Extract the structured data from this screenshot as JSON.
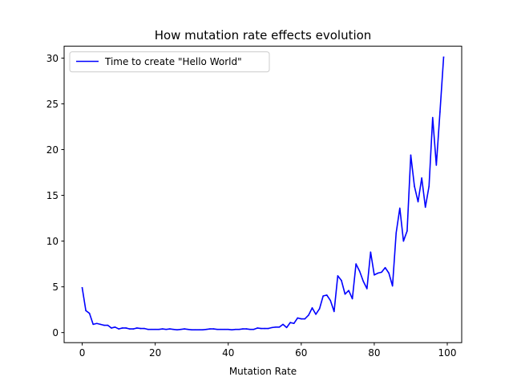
{
  "chart_data": {
    "type": "line",
    "title": "How mutation rate effects evolution",
    "xlabel": "Mutation Rate",
    "ylabel": "",
    "xlim": [
      -4.95,
      103.95
    ],
    "ylim": [
      -1.1,
      31.3
    ],
    "xticks": [
      0,
      20,
      40,
      60,
      80,
      100
    ],
    "yticks": [
      0,
      5,
      10,
      15,
      20,
      25,
      30
    ],
    "grid": false,
    "legend_position": "top-left",
    "series": [
      {
        "name": "Time to create \"Hello World\"",
        "color": "#0000ff",
        "x": [
          0,
          1,
          2,
          3,
          4,
          5,
          6,
          7,
          8,
          9,
          10,
          11,
          12,
          13,
          14,
          15,
          16,
          17,
          18,
          19,
          20,
          21,
          22,
          23,
          24,
          25,
          26,
          27,
          28,
          29,
          30,
          31,
          32,
          33,
          34,
          35,
          36,
          37,
          38,
          39,
          40,
          41,
          42,
          43,
          44,
          45,
          46,
          47,
          48,
          49,
          50,
          51,
          52,
          53,
          54,
          55,
          56,
          57,
          58,
          59,
          60,
          61,
          62,
          63,
          64,
          65,
          66,
          67,
          68,
          69,
          70,
          71,
          72,
          73,
          74,
          75,
          76,
          77,
          78,
          79,
          80,
          81,
          82,
          83,
          84,
          85,
          86,
          87,
          88,
          89,
          90,
          91,
          92,
          93,
          94,
          95,
          96,
          97,
          98,
          99
        ],
        "y": [
          4.9,
          2.4,
          2.1,
          0.9,
          1.0,
          0.9,
          0.8,
          0.8,
          0.5,
          0.6,
          0.4,
          0.5,
          0.5,
          0.4,
          0.4,
          0.5,
          0.45,
          0.45,
          0.35,
          0.35,
          0.35,
          0.35,
          0.4,
          0.35,
          0.4,
          0.35,
          0.3,
          0.35,
          0.4,
          0.35,
          0.3,
          0.3,
          0.3,
          0.3,
          0.35,
          0.4,
          0.4,
          0.35,
          0.35,
          0.35,
          0.35,
          0.3,
          0.35,
          0.35,
          0.4,
          0.4,
          0.35,
          0.35,
          0.5,
          0.45,
          0.45,
          0.45,
          0.55,
          0.6,
          0.6,
          0.9,
          0.55,
          1.1,
          1.0,
          1.6,
          1.5,
          1.5,
          1.9,
          2.7,
          2.0,
          2.6,
          4.0,
          4.1,
          3.5,
          2.3,
          6.2,
          5.7,
          4.2,
          4.6,
          3.7,
          7.5,
          6.7,
          5.6,
          4.8,
          8.8,
          6.3,
          6.5,
          6.6,
          7.1,
          6.5,
          5.1,
          10.9,
          13.6,
          10.0,
          11.1,
          19.4,
          16.0,
          14.3,
          16.9,
          13.7,
          16.0,
          23.5,
          18.3,
          24.1,
          30.1
        ]
      }
    ]
  }
}
